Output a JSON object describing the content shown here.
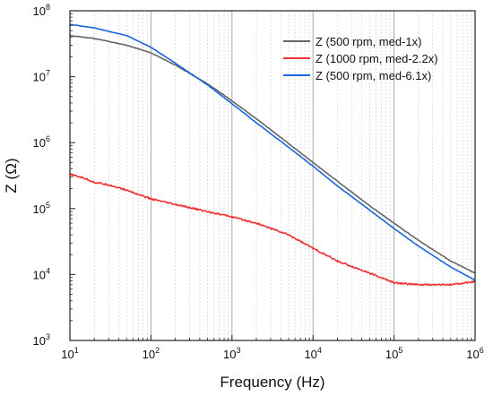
{
  "chart_data": {
    "type": "line",
    "xlabel": "Frequency (Hz)",
    "ylabel": "Z (Ω)",
    "x_scale": "log",
    "y_scale": "log",
    "xlim": [
      10,
      1000000
    ],
    "ylim": [
      1000,
      100000000
    ],
    "x_ticks": [
      {
        "base": "10",
        "exp": "1",
        "value": 10
      },
      {
        "base": "10",
        "exp": "2",
        "value": 100
      },
      {
        "base": "10",
        "exp": "3",
        "value": 1000
      },
      {
        "base": "10",
        "exp": "4",
        "value": 10000
      },
      {
        "base": "10",
        "exp": "5",
        "value": 100000
      },
      {
        "base": "10",
        "exp": "6",
        "value": 1000000
      }
    ],
    "y_ticks": [
      {
        "base": "10",
        "exp": "3",
        "value": 1000
      },
      {
        "base": "10",
        "exp": "4",
        "value": 10000
      },
      {
        "base": "10",
        "exp": "5",
        "value": 100000
      },
      {
        "base": "10",
        "exp": "6",
        "value": 1000000
      },
      {
        "base": "10",
        "exp": "7",
        "value": 10000000
      },
      {
        "base": "10",
        "exp": "8",
        "value": 100000000
      }
    ],
    "grid": {
      "major_vertical": true,
      "minor_vertical": true,
      "horizontal": false
    },
    "legend_position": "top-right",
    "series": [
      {
        "name": "Z (500 rpm, med-1x)",
        "color": "#666666",
        "x": [
          10,
          20,
          50,
          100,
          200,
          500,
          1000,
          2000,
          5000,
          10000,
          20000,
          50000,
          100000,
          200000,
          500000,
          1000000
        ],
        "y": [
          42000000,
          38000000,
          30000000,
          23000000,
          15000000,
          7800000,
          4300000,
          2300000,
          970000,
          500000,
          260000,
          110000,
          60000,
          33000,
          16000,
          10500
        ]
      },
      {
        "name": "Z (1000 rpm, med-2.2x)",
        "color": "#ee3333",
        "x": [
          10,
          15,
          20,
          30,
          50,
          100,
          200,
          500,
          1000,
          2000,
          5000,
          10000,
          20000,
          50000,
          100000,
          200000,
          500000,
          1000000
        ],
        "y": [
          330000,
          290000,
          250000,
          230000,
          190000,
          140000,
          115000,
          90000,
          75000,
          60000,
          40000,
          25000,
          16000,
          10500,
          7500,
          7000,
          7000,
          7800
        ]
      },
      {
        "name": "Z (500 rpm, med-6.1x)",
        "color": "#1a66dd",
        "x": [
          10,
          20,
          50,
          100,
          200,
          500,
          1000,
          2000,
          5000,
          10000,
          20000,
          50000,
          100000,
          200000,
          500000,
          1000000
        ],
        "y": [
          62000000,
          55000000,
          42000000,
          28000000,
          16000000,
          7500000,
          3900000,
          2000000,
          850000,
          440000,
          220000,
          95000,
          50000,
          27000,
          13000,
          8200
        ]
      }
    ]
  }
}
